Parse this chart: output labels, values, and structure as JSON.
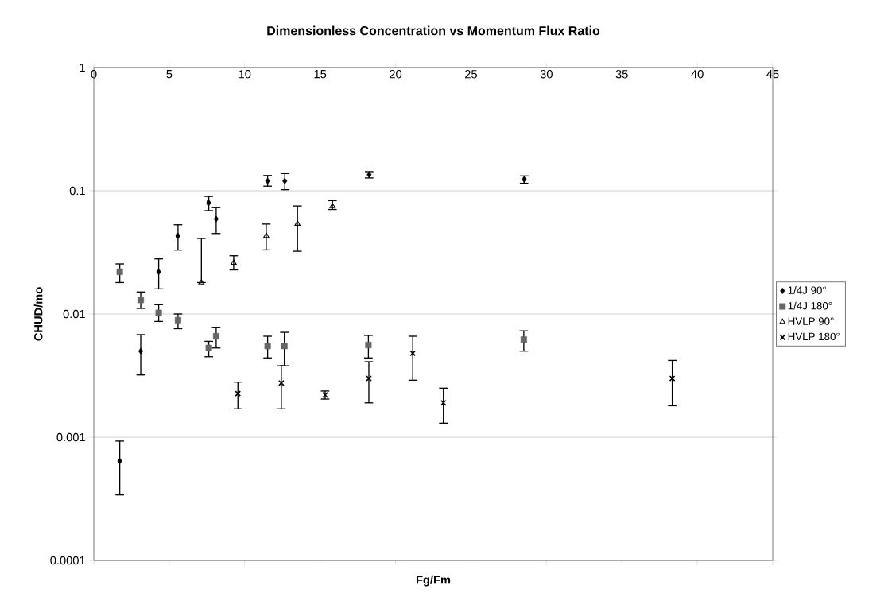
{
  "chart_data": {
    "type": "scatter",
    "title": "Dimensionless Concentration vs Momentum Flux Ratio",
    "xlabel": "Fg/Fm",
    "ylabel": "CHUD/mo",
    "xlim": [
      0,
      45
    ],
    "xticks": [
      0,
      5,
      10,
      15,
      20,
      25,
      30,
      35,
      40,
      45
    ],
    "ylim": [
      0.0001,
      1
    ],
    "yticks": [
      0.0001,
      0.001,
      0.01,
      0.1,
      1
    ],
    "log": "y",
    "grid": "y",
    "legend": "right",
    "series": [
      {
        "name": "1/4J 90°",
        "color": "#000000",
        "marker": "diamond",
        "x": [
          1.72,
          3.11,
          4.3,
          5.58,
          7.62,
          8.11,
          11.52,
          12.66,
          18.25,
          28.52
        ],
        "values": [
          0.00064,
          0.005,
          0.022,
          0.043,
          0.08,
          0.059,
          0.12,
          0.12,
          0.135,
          0.124
        ],
        "errors": [
          [
            0.00034,
            0.00093
          ],
          [
            0.0032,
            0.0068
          ],
          [
            0.016,
            0.028
          ],
          [
            0.033,
            0.053
          ],
          [
            0.069,
            0.09
          ],
          [
            0.045,
            0.073
          ],
          [
            0.109,
            0.133
          ],
          [
            0.102,
            0.138
          ],
          [
            0.127,
            0.143
          ],
          [
            0.115,
            0.132
          ]
        ]
      },
      {
        "name": "1/4J 180°",
        "color": "#666666",
        "marker": "square",
        "x": [
          1.72,
          3.11,
          4.3,
          5.58,
          7.62,
          8.11,
          11.52,
          12.63,
          18.2,
          28.5
        ],
        "values": [
          0.022,
          0.013,
          0.0102,
          0.0089,
          0.0053,
          0.0066,
          0.0055,
          0.0055,
          0.0056,
          0.0062
        ],
        "errors": [
          [
            0.018,
            0.0255
          ],
          [
            0.0111,
            0.0151
          ],
          [
            0.0087,
            0.0119
          ],
          [
            0.0076,
            0.01
          ],
          [
            0.0045,
            0.006
          ],
          [
            0.0053,
            0.0078
          ],
          [
            0.0044,
            0.0066
          ],
          [
            0.0038,
            0.0071
          ],
          [
            0.0044,
            0.0067
          ],
          [
            0.005,
            0.0073
          ]
        ]
      },
      {
        "name": "HVLP 90°",
        "color": "#000000",
        "marker": "triangle",
        "x": [
          7.13,
          9.27,
          11.43,
          13.5,
          15.82
        ],
        "values": [
          0.018,
          0.026,
          0.043,
          0.054,
          0.075
        ],
        "errors": [
          [
            0.018,
            0.041
          ],
          [
            0.0228,
            0.0297
          ],
          [
            0.0331,
            0.0537
          ],
          [
            0.0323,
            0.0753
          ],
          [
            0.0705,
            0.0832
          ]
        ]
      },
      {
        "name": "HVLP 180°",
        "color": "#000000",
        "marker": "cross",
        "x": [
          9.55,
          12.43,
          15.33,
          18.23,
          21.14,
          23.17,
          38.34
        ],
        "values": [
          0.00226,
          0.00275,
          0.0022,
          0.003,
          0.0048,
          0.0019,
          0.003
        ],
        "errors": [
          [
            0.0017,
            0.0028
          ],
          [
            0.0017,
            0.0038
          ],
          [
            0.00204,
            0.00237
          ],
          [
            0.0019,
            0.0041
          ],
          [
            0.0029,
            0.0066
          ],
          [
            0.0013,
            0.0025
          ],
          [
            0.0018,
            0.0042
          ]
        ]
      }
    ]
  }
}
